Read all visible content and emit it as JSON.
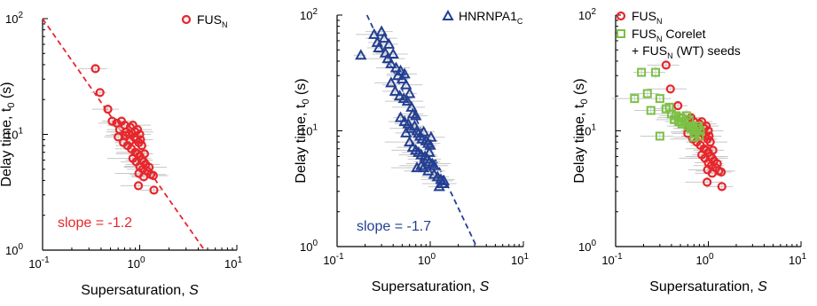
{
  "colors": {
    "red": "#e8262b",
    "blue": "#233f92",
    "green": "#7ac143",
    "errbar": "#c8c8c8"
  },
  "chart_data": [
    {
      "type": "scatter",
      "xlabel": "Supersaturation, ",
      "xlabel_italic": "S",
      "ylabel": "Delay time, t",
      "ylabel_sub": "0",
      "ylabel_suffix": " (s)",
      "xscale": "log",
      "yscale": "log",
      "xlim": [
        0.1,
        10
      ],
      "ylim": [
        1,
        100
      ],
      "xticks": [
        {
          "base": "10",
          "exp": "-1"
        },
        {
          "base": "10",
          "exp": "0"
        },
        {
          "base": "10",
          "exp": "1"
        }
      ],
      "yticks": [
        {
          "base": "10",
          "exp": "0"
        },
        {
          "base": "10",
          "exp": "1"
        },
        {
          "base": "10",
          "exp": "2"
        }
      ],
      "legend": [
        {
          "marker": "circle",
          "color": "#e8262b",
          "label": "FUS",
          "sub": "N"
        }
      ],
      "annotation": "slope = -1.2",
      "fit": {
        "slope": -1.2,
        "y_at_x1": 6.3,
        "color": "#e8262b"
      },
      "series": [
        {
          "marker": "circle",
          "color": "#e8262b",
          "points": [
            [
              0.35,
              37
            ],
            [
              0.39,
              23
            ],
            [
              0.47,
              16.5
            ],
            [
              0.52,
              13
            ],
            [
              0.58,
              12.5
            ],
            [
              0.62,
              11
            ],
            [
              0.65,
              13
            ],
            [
              0.7,
              12
            ],
            [
              0.73,
              10.5
            ],
            [
              0.78,
              10
            ],
            [
              0.8,
              11.5
            ],
            [
              0.85,
              12
            ],
            [
              0.88,
              9.5
            ],
            [
              0.9,
              10.5
            ],
            [
              0.92,
              9
            ],
            [
              0.95,
              11
            ],
            [
              0.98,
              8.5
            ],
            [
              1.0,
              10
            ],
            [
              1.02,
              9
            ],
            [
              1.05,
              8
            ],
            [
              0.6,
              9.5
            ],
            [
              0.68,
              8.5
            ],
            [
              0.75,
              8
            ],
            [
              0.82,
              7.5
            ],
            [
              0.9,
              7
            ],
            [
              0.95,
              6.8
            ],
            [
              1.0,
              6.5
            ],
            [
              1.05,
              6
            ],
            [
              1.1,
              5.8
            ],
            [
              1.15,
              5.5
            ],
            [
              0.85,
              6.2
            ],
            [
              0.92,
              5.8
            ],
            [
              1.0,
              5.3
            ],
            [
              1.08,
              5
            ],
            [
              1.2,
              4.8
            ],
            [
              1.3,
              4.5
            ],
            [
              1.1,
              4.3
            ],
            [
              0.98,
              4.6
            ],
            [
              1.25,
              5.2
            ],
            [
              1.38,
              4.4
            ],
            [
              0.97,
              3.6
            ],
            [
              1.4,
              3.3
            ],
            [
              1.12,
              6.8
            ],
            [
              0.72,
              9.8
            ],
            [
              0.8,
              8.8
            ]
          ]
        }
      ]
    },
    {
      "type": "scatter",
      "xlabel": "Supersaturation, ",
      "xlabel_italic": "S",
      "ylabel": "Delay time, t",
      "ylabel_sub": "0",
      "ylabel_suffix": " (s)",
      "xscale": "log",
      "yscale": "log",
      "xlim": [
        0.1,
        10
      ],
      "ylim": [
        1,
        100
      ],
      "xticks": [
        {
          "base": "10",
          "exp": "-1"
        },
        {
          "base": "10",
          "exp": "0"
        },
        {
          "base": "10",
          "exp": "1"
        }
      ],
      "yticks": [
        {
          "base": "10",
          "exp": "0"
        },
        {
          "base": "10",
          "exp": "1"
        },
        {
          "base": "10",
          "exp": "2"
        }
      ],
      "legend": [
        {
          "marker": "triangle",
          "color": "#233f92",
          "label": "HNRNPA1",
          "sub": "C"
        }
      ],
      "annotation": "slope = -1.7",
      "fit": {
        "slope": -1.7,
        "y_at_x1": 7.0,
        "color": "#233f92"
      },
      "series": [
        {
          "marker": "triangle",
          "color": "#233f92",
          "points": [
            [
              0.18,
              45
            ],
            [
              0.25,
              68
            ],
            [
              0.27,
              58
            ],
            [
              0.3,
              72
            ],
            [
              0.32,
              63
            ],
            [
              0.33,
              47
            ],
            [
              0.35,
              42
            ],
            [
              0.38,
              38
            ],
            [
              0.4,
              46
            ],
            [
              0.43,
              35
            ],
            [
              0.45,
              30
            ],
            [
              0.48,
              33
            ],
            [
              0.5,
              28
            ],
            [
              0.53,
              31
            ],
            [
              0.55,
              25
            ],
            [
              0.38,
              26
            ],
            [
              0.42,
              22
            ],
            [
              0.47,
              20
            ],
            [
              0.52,
              19
            ],
            [
              0.57,
              18
            ],
            [
              0.6,
              21
            ],
            [
              0.63,
              16
            ],
            [
              0.65,
              14
            ],
            [
              0.7,
              13.5
            ],
            [
              0.48,
              13
            ],
            [
              0.53,
              12
            ],
            [
              0.58,
              11.5
            ],
            [
              0.62,
              10.5
            ],
            [
              0.68,
              11
            ],
            [
              0.72,
              10
            ],
            [
              0.75,
              9.5
            ],
            [
              0.78,
              9
            ],
            [
              0.82,
              8.5
            ],
            [
              0.85,
              9.8
            ],
            [
              0.9,
              8.2
            ],
            [
              0.95,
              7.8
            ],
            [
              1.0,
              7.5
            ],
            [
              1.02,
              8.8
            ],
            [
              0.6,
              8
            ],
            [
              0.65,
              7.2
            ],
            [
              0.7,
              6.8
            ],
            [
              0.75,
              6.5
            ],
            [
              0.8,
              6.2
            ],
            [
              0.88,
              6
            ],
            [
              0.93,
              5.7
            ],
            [
              0.98,
              5.4
            ],
            [
              1.05,
              5.2
            ],
            [
              1.1,
              5
            ],
            [
              0.8,
              5
            ],
            [
              0.85,
              4.8
            ],
            [
              0.95,
              4.5
            ],
            [
              1.1,
              4.2
            ],
            [
              1.2,
              4
            ],
            [
              1.3,
              3.8
            ],
            [
              1.35,
              3.5
            ],
            [
              1.25,
              3.3
            ],
            [
              1.4,
              3.7
            ],
            [
              0.72,
              4.8
            ],
            [
              0.98,
              6.5
            ],
            [
              0.55,
              9.6
            ],
            [
              0.28,
              52
            ],
            [
              0.36,
              56
            ]
          ]
        }
      ]
    },
    {
      "type": "scatter",
      "xlabel": "Supersaturation, ",
      "xlabel_italic": "S",
      "ylabel": "Delay time, t",
      "ylabel_sub": "0",
      "ylabel_suffix": " (s)",
      "xscale": "log",
      "yscale": "log",
      "xlim": [
        0.1,
        10
      ],
      "ylim": [
        1,
        100
      ],
      "xticks": [
        {
          "base": "10",
          "exp": "-1"
        },
        {
          "base": "10",
          "exp": "0"
        },
        {
          "base": "10",
          "exp": "1"
        }
      ],
      "yticks": [
        {
          "base": "10",
          "exp": "0"
        },
        {
          "base": "10",
          "exp": "1"
        },
        {
          "base": "10",
          "exp": "2"
        }
      ],
      "legend": [
        {
          "marker": "circle",
          "color": "#e8262b",
          "label": "FUS",
          "sub": "N"
        },
        {
          "marker": "square",
          "color": "#7ac143",
          "label": "FUS",
          "sub": "N",
          "suffix": " Corelet",
          "line2_a": "+ FUS",
          "line2_sub": "N",
          "line2_b": " (WT) seeds"
        }
      ],
      "series": [
        {
          "marker": "circle",
          "color": "#e8262b",
          "points": [
            [
              0.35,
              37
            ],
            [
              0.39,
              23
            ],
            [
              0.47,
              16.5
            ],
            [
              0.52,
              13
            ],
            [
              0.58,
              12.5
            ],
            [
              0.62,
              11
            ],
            [
              0.65,
              13
            ],
            [
              0.7,
              12
            ],
            [
              0.73,
              10.5
            ],
            [
              0.78,
              10
            ],
            [
              0.8,
              11.5
            ],
            [
              0.85,
              12
            ],
            [
              0.88,
              9.5
            ],
            [
              0.9,
              10.5
            ],
            [
              0.92,
              9
            ],
            [
              0.95,
              11
            ],
            [
              0.98,
              8.5
            ],
            [
              1.0,
              10
            ],
            [
              1.02,
              9
            ],
            [
              1.05,
              8
            ],
            [
              0.6,
              9.5
            ],
            [
              0.68,
              8.5
            ],
            [
              0.75,
              8
            ],
            [
              0.82,
              7.5
            ],
            [
              0.9,
              7
            ],
            [
              0.95,
              6.8
            ],
            [
              1.0,
              6.5
            ],
            [
              1.05,
              6
            ],
            [
              1.1,
              5.8
            ],
            [
              1.15,
              5.5
            ],
            [
              0.85,
              6.2
            ],
            [
              0.92,
              5.8
            ],
            [
              1.0,
              5.3
            ],
            [
              1.08,
              5
            ],
            [
              1.2,
              4.8
            ],
            [
              1.3,
              4.5
            ],
            [
              1.1,
              4.3
            ],
            [
              0.98,
              4.6
            ],
            [
              1.25,
              5.2
            ],
            [
              1.38,
              4.4
            ],
            [
              0.97,
              3.6
            ],
            [
              1.4,
              3.3
            ],
            [
              1.12,
              6.8
            ],
            [
              0.72,
              9.8
            ],
            [
              0.8,
              8.8
            ]
          ]
        },
        {
          "marker": "square",
          "color": "#7ac143",
          "points": [
            [
              0.19,
              32
            ],
            [
              0.27,
              32
            ],
            [
              0.16,
              19
            ],
            [
              0.22,
              21
            ],
            [
              0.3,
              19
            ],
            [
              0.24,
              15
            ],
            [
              0.35,
              15.5
            ],
            [
              0.4,
              14
            ],
            [
              0.43,
              12.5
            ],
            [
              0.45,
              13.5
            ],
            [
              0.48,
              12
            ],
            [
              0.5,
              13
            ],
            [
              0.55,
              12
            ],
            [
              0.6,
              11
            ],
            [
              0.65,
              10.5
            ],
            [
              0.68,
              11
            ],
            [
              0.7,
              10
            ],
            [
              0.72,
              9.5
            ],
            [
              0.75,
              10.5
            ],
            [
              0.78,
              11
            ],
            [
              0.8,
              9
            ],
            [
              0.82,
              10
            ],
            [
              0.3,
              9
            ],
            [
              0.58,
              13.5
            ],
            [
              0.62,
              12.5
            ],
            [
              0.7,
              8.8
            ],
            [
              0.52,
              11.5
            ],
            [
              0.38,
              16
            ]
          ]
        }
      ]
    }
  ]
}
